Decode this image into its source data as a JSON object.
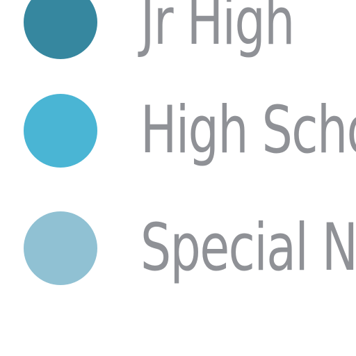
{
  "legend": {
    "items": [
      {
        "label": "Jr High",
        "color": "#36879f"
      },
      {
        "label": "High School",
        "color": "#4ab5d4"
      },
      {
        "label": "Special Needs",
        "color": "#90c1d3"
      }
    ]
  }
}
